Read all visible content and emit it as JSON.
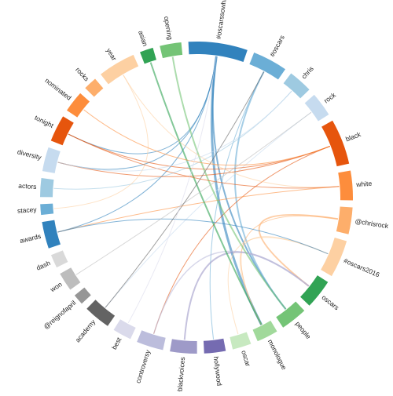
{
  "chart_data": {
    "type": "chord",
    "categories": [
      "#oscarssowhite",
      "#oscars",
      "chris",
      "rock",
      "black",
      "white",
      "@chrisrock",
      "#oscars2016",
      "oscars",
      "people",
      "monologue",
      "oscar",
      "hollywood",
      "@blackvoices",
      "controversy",
      "best",
      "academy",
      "@reignofapril",
      "won",
      "dash",
      "awards",
      "stacey",
      "actors",
      "diversity",
      "tonight",
      "nominated",
      "rocks",
      "year",
      "asian",
      "opening"
    ],
    "values": [
      22,
      13,
      9,
      9,
      17,
      11,
      10,
      14,
      11,
      10,
      8,
      7,
      8,
      10,
      10,
      7,
      10,
      4,
      7,
      5,
      10,
      4,
      7,
      9,
      10,
      8,
      5,
      14,
      5,
      8
    ],
    "colors": [
      "#3182bd",
      "#6baed6",
      "#9ecae1",
      "#c6dbef",
      "#e6550d",
      "#fd8d3c",
      "#fdae6b",
      "#fdd0a2",
      "#31a354",
      "#74c476",
      "#a1d99b",
      "#c7e9c0",
      "#756bb1",
      "#9e9ac8",
      "#bcbddc",
      "#dadaeb",
      "#636363",
      "#969696",
      "#bdbdbd",
      "#d9d9d9",
      "#3182bd",
      "#6baed6",
      "#9ecae1",
      "#c6dbef",
      "#e6550d",
      "#fd8d3c",
      "#fdae6b",
      "#fdd0a2",
      "#31a354",
      "#74c476"
    ],
    "links": [
      {
        "source": "#oscarssowhite",
        "target": "monologue",
        "value": 3
      },
      {
        "source": "#oscarssowhite",
        "target": "people",
        "value": 2
      },
      {
        "source": "#oscarssowhite",
        "target": "tonight",
        "value": 1
      },
      {
        "source": "#oscarssowhite",
        "target": "awards",
        "value": 1
      },
      {
        "source": "#oscarssowhite",
        "target": "diversity",
        "value": 1
      },
      {
        "source": "#oscars",
        "target": "people",
        "value": 2
      },
      {
        "source": "#oscars",
        "target": "hollywood",
        "value": 1
      },
      {
        "source": "chris",
        "target": "actors",
        "value": 1
      },
      {
        "source": "rock",
        "target": "academy",
        "value": 1
      },
      {
        "source": "black",
        "target": "tonight",
        "value": 1
      },
      {
        "source": "black",
        "target": "diversity",
        "value": 1
      },
      {
        "source": "black",
        "target": "controversy",
        "value": 1
      },
      {
        "source": "white",
        "target": "awards",
        "value": 1
      },
      {
        "source": "@chrisrock",
        "target": "oscars",
        "value": 2
      },
      {
        "source": "@chrisrock",
        "target": "monologue",
        "value": 1
      },
      {
        "source": "#oscars2016",
        "target": "oscar",
        "value": 1
      },
      {
        "source": "#oscars2016",
        "target": "monologue",
        "value": 1
      },
      {
        "source": "@blackvoices",
        "target": "oscars",
        "value": 2
      },
      {
        "source": "controversy",
        "target": "oscars",
        "value": 1.5
      },
      {
        "source": "asian",
        "target": "monologue",
        "value": 2
      },
      {
        "source": "opening",
        "target": "people",
        "value": 2
      },
      {
        "source": "year",
        "target": "white",
        "value": 1
      },
      {
        "source": "year",
        "target": "stacey",
        "value": 1
      },
      {
        "source": "nominated",
        "target": "black",
        "value": 1
      },
      {
        "source": "tonight",
        "target": "white",
        "value": 1
      },
      {
        "source": "awards",
        "target": "#oscars2016",
        "value": 1
      },
      {
        "source": "won",
        "target": "rock",
        "value": 1
      },
      {
        "source": "academy",
        "target": "#oscars",
        "value": 1
      },
      {
        "source": "diversity",
        "target": "chris",
        "value": 1
      },
      {
        "source": "best",
        "target": "#oscarssowhite",
        "value": 1
      }
    ]
  }
}
